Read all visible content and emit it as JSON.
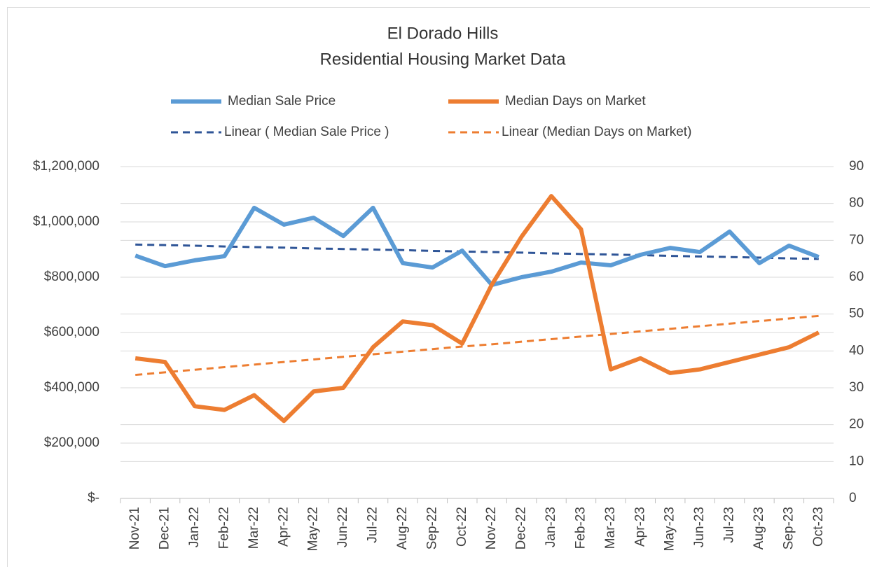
{
  "chart_data": {
    "type": "line",
    "title": "El Dorado Hills",
    "subtitle": "Residential Housing Market Data",
    "categories": [
      "Nov-21",
      "Dec-21",
      "Jan-22",
      "Feb-22",
      "Mar-22",
      "Apr-22",
      "May-22",
      "Jun-22",
      "Jul-22",
      "Aug-22",
      "Sep-22",
      "Oct-22",
      "Nov-22",
      "Dec-22",
      "Jan-23",
      "Feb-23",
      "Mar-23",
      "Apr-23",
      "May-23",
      "Jun-23",
      "Jul-23",
      "Aug-23",
      "Sep-23",
      "Oct-23"
    ],
    "series": [
      {
        "name": "Median Sale Price",
        "color": "#5b9bd5",
        "dashed": false,
        "values": [
          878000,
          840000,
          861000,
          876000,
          1051000,
          990000,
          1015000,
          949000,
          1051000,
          851000,
          835000,
          896000,
          772000,
          800000,
          820000,
          853000,
          843000,
          881000,
          906000,
          891000,
          965000,
          851000,
          914000,
          873000
        ]
      },
      {
        "name": "Median Days on Market",
        "color": "#ed7d31",
        "dashed": false,
        "axis": "y2",
        "values": [
          38,
          37,
          25,
          24,
          28,
          21,
          29,
          30,
          41,
          48,
          47,
          42,
          58,
          71,
          82,
          73,
          35,
          38,
          34,
          35,
          37,
          39,
          41,
          45
        ]
      },
      {
        "name": "Linear ( Median Sale Price )",
        "color": "#2f5597",
        "dashed": true,
        "values": [
          918000,
          916000,
          914000,
          911000,
          909000,
          907000,
          904000,
          902000,
          900000,
          898000,
          895000,
          893000,
          891000,
          889000,
          886000,
          884000,
          882000,
          880000,
          877000,
          875000,
          873000,
          871000,
          868000,
          866000
        ]
      },
      {
        "name": "Linear (Median Days on Market)",
        "color": "#ed7d31",
        "dashed": true,
        "axis": "y2",
        "values": [
          33.5,
          34.2,
          34.9,
          35.6,
          36.3,
          37.0,
          37.7,
          38.4,
          39.1,
          39.8,
          40.5,
          41.2,
          41.8,
          42.5,
          43.2,
          43.9,
          44.6,
          45.3,
          46.0,
          46.7,
          47.4,
          48.1,
          48.8,
          49.5
        ]
      }
    ],
    "ylim": [
      0,
      1200000
    ],
    "yticks": [
      {
        "value": 0,
        "label": "$-"
      },
      {
        "value": 200000,
        "label": "$200,000"
      },
      {
        "value": 400000,
        "label": "$400,000"
      },
      {
        "value": 600000,
        "label": "$600,000"
      },
      {
        "value": 800000,
        "label": "$800,000"
      },
      {
        "value": 1000000,
        "label": "$1,000,000"
      },
      {
        "value": 1200000,
        "label": "$1,200,000"
      }
    ],
    "y2lim": [
      0,
      90
    ],
    "y2ticks": [
      0,
      10,
      20,
      30,
      40,
      50,
      60,
      70,
      80,
      90
    ],
    "grid": true,
    "legend": "top"
  }
}
